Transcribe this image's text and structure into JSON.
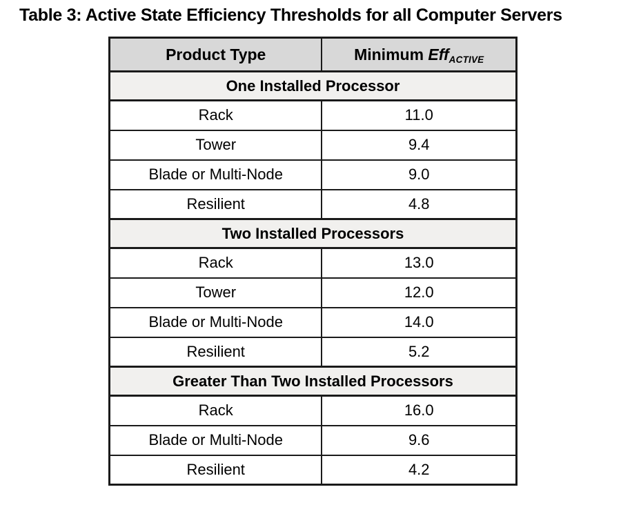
{
  "page": {
    "title": "Table 3: Active State Efficiency Thresholds for all Computer Servers"
  },
  "table": {
    "header": {
      "product_type": "Product Type",
      "min_eff_prefix": "Minimum ",
      "min_eff_italic": "Eff",
      "min_eff_subscript": "ACTIVE"
    },
    "sections": [
      {
        "title": "One Installed Processor",
        "rows": [
          {
            "product": "Rack",
            "value": "11.0"
          },
          {
            "product": "Tower",
            "value": "9.4"
          },
          {
            "product": "Blade or Multi-Node",
            "value": "9.0"
          },
          {
            "product": "Resilient",
            "value": "4.8"
          }
        ]
      },
      {
        "title": "Two Installed Processors",
        "rows": [
          {
            "product": "Rack",
            "value": "13.0"
          },
          {
            "product": "Tower",
            "value": "12.0"
          },
          {
            "product": "Blade or Multi-Node",
            "value": "14.0"
          },
          {
            "product": "Resilient",
            "value": "5.2"
          }
        ]
      },
      {
        "title": "Greater Than Two Installed Processors",
        "rows": [
          {
            "product": "Rack",
            "value": "16.0"
          },
          {
            "product": "Blade or Multi-Node",
            "value": "9.6"
          },
          {
            "product": "Resilient",
            "value": "4.2"
          }
        ]
      }
    ]
  },
  "colors": {
    "header_bg": "#d8d8d8",
    "section_bg": "#f1f0ee",
    "border": "#1a1a1a",
    "text": "#000000",
    "page_bg": "#ffffff"
  }
}
